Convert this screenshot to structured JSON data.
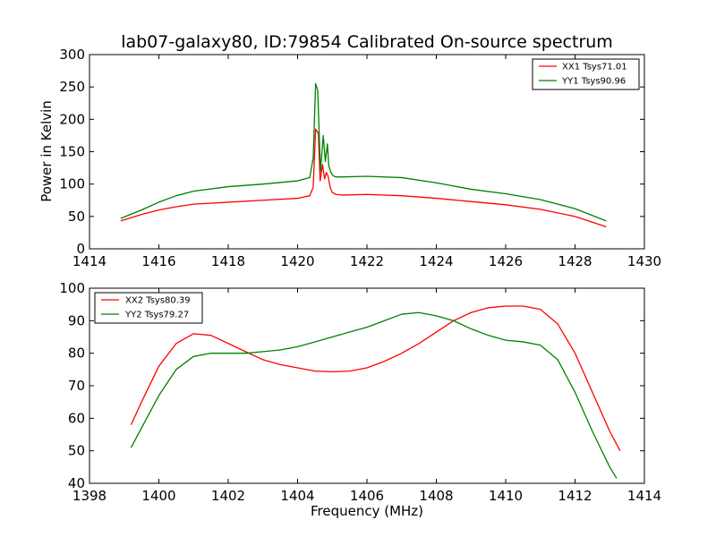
{
  "title": "lab07-galaxy80, ID:79854 Calibrated On-source spectrum",
  "chart_data": [
    {
      "type": "line",
      "title": "lab07-galaxy80, ID:79854 Calibrated On-source spectrum",
      "xlabel": "",
      "ylabel": "Power in Kelvin",
      "xlim": [
        1414,
        1430
      ],
      "ylim": [
        0,
        300
      ],
      "xticks": [
        1414,
        1416,
        1418,
        1420,
        1422,
        1424,
        1426,
        1428,
        1430
      ],
      "yticks": [
        0,
        50,
        100,
        150,
        200,
        250,
        300
      ],
      "grid": false,
      "legend": "top-right",
      "series": [
        {
          "name": "XX1 Tsys71.01",
          "color": "#ff0000",
          "x": [
            1414.9,
            1415.5,
            1416,
            1416.5,
            1417,
            1418,
            1419,
            1420,
            1420.35,
            1420.45,
            1420.52,
            1420.6,
            1420.65,
            1420.72,
            1420.78,
            1420.83,
            1420.88,
            1420.94,
            1421.0,
            1421.1,
            1421.3,
            1422,
            1423,
            1424,
            1425,
            1426,
            1427,
            1428,
            1428.9
          ],
          "y": [
            43,
            53,
            60,
            65,
            69,
            72,
            75,
            78,
            82,
            95,
            185,
            178,
            105,
            130,
            108,
            118,
            112,
            95,
            87,
            84,
            83,
            84,
            82,
            78,
            73,
            68,
            61,
            50,
            34
          ]
        },
        {
          "name": "YY1 Tsys90.96",
          "color": "#008000",
          "x": [
            1414.9,
            1415.5,
            1416,
            1416.5,
            1417,
            1418,
            1419,
            1420,
            1420.35,
            1420.45,
            1420.52,
            1420.58,
            1420.66,
            1420.74,
            1420.8,
            1420.86,
            1420.9,
            1420.96,
            1421.02,
            1421.1,
            1421.3,
            1422,
            1423,
            1424,
            1425,
            1426,
            1427,
            1428,
            1428.9
          ],
          "y": [
            47,
            60,
            72,
            82,
            89,
            96,
            100,
            105,
            110,
            140,
            255,
            245,
            120,
            175,
            135,
            162,
            128,
            118,
            113,
            111,
            111,
            112,
            110,
            102,
            92,
            85,
            76,
            62,
            43
          ]
        }
      ]
    },
    {
      "type": "line",
      "title": "",
      "xlabel": "Frequency (MHz)",
      "ylabel": "",
      "xlim": [
        1398,
        1414
      ],
      "ylim": [
        40,
        100
      ],
      "xticks": [
        1398,
        1400,
        1402,
        1404,
        1406,
        1408,
        1410,
        1412,
        1414
      ],
      "yticks": [
        40,
        50,
        60,
        70,
        80,
        90,
        100
      ],
      "grid": false,
      "legend": "top-left",
      "series": [
        {
          "name": "XX2 Tsys80.39",
          "color": "#ff0000",
          "x": [
            1399.2,
            1399.5,
            1400,
            1400.5,
            1401,
            1401.5,
            1402,
            1402.5,
            1403,
            1403.5,
            1404,
            1404.5,
            1405,
            1405.5,
            1406,
            1406.5,
            1407,
            1407.5,
            1408,
            1408.5,
            1409,
            1409.5,
            1410,
            1410.5,
            1411,
            1411.5,
            1412,
            1412.5,
            1413,
            1413.3
          ],
          "y": [
            58,
            65,
            76,
            83,
            86,
            85.5,
            83,
            80.5,
            78,
            76.5,
            75.5,
            74.5,
            74.3,
            74.5,
            75.5,
            77.5,
            80,
            83,
            86.5,
            90,
            92.5,
            94,
            94.5,
            94.5,
            93.5,
            89,
            80,
            68,
            56,
            50
          ]
        },
        {
          "name": "YY2 Tsys79.27",
          "color": "#008000",
          "x": [
            1399.2,
            1399.5,
            1400,
            1400.5,
            1401,
            1401.5,
            1402,
            1402.5,
            1403,
            1403.5,
            1404,
            1404.5,
            1405,
            1405.5,
            1406,
            1406.5,
            1407,
            1407.5,
            1408,
            1408.5,
            1409,
            1409.5,
            1410,
            1410.5,
            1411,
            1411.5,
            1412,
            1412.5,
            1413,
            1413.2
          ],
          "y": [
            51,
            57,
            67,
            75,
            79,
            80,
            80,
            80,
            80.5,
            81,
            82,
            83.5,
            85,
            86.5,
            88,
            90,
            92,
            92.5,
            91.5,
            90,
            87.5,
            85.5,
            84,
            83.5,
            82.5,
            78,
            68,
            56,
            45,
            41.5
          ]
        }
      ]
    }
  ]
}
